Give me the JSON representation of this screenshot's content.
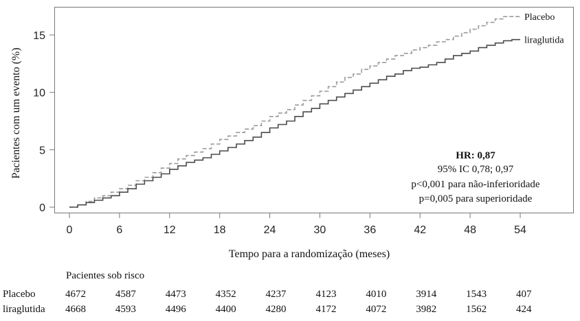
{
  "chart_data": {
    "type": "line",
    "xlabel": "Tempo para a randomização (meses)",
    "ylabel": "Pacientes com um evento (%)",
    "xticks": [
      0,
      6,
      12,
      18,
      24,
      30,
      36,
      42,
      48,
      54
    ],
    "yticks": [
      0,
      5,
      10,
      15
    ],
    "xlim": [
      0,
      54
    ],
    "ylim": [
      0,
      17
    ],
    "grid": false,
    "series": [
      {
        "name": "Placebo",
        "color": "#9a9a9a",
        "style": "dashed",
        "x": [
          0,
          1,
          2,
          3,
          4,
          5,
          6,
          7,
          8,
          9,
          10,
          11,
          12,
          13,
          14,
          15,
          16,
          17,
          18,
          19,
          20,
          21,
          22,
          23,
          24,
          25,
          26,
          27,
          28,
          29,
          30,
          31,
          32,
          33,
          34,
          35,
          36,
          37,
          38,
          39,
          40,
          41,
          42,
          43,
          44,
          45,
          46,
          47,
          48,
          49,
          50,
          51,
          52,
          53,
          54
        ],
        "values": [
          0.0,
          0.2,
          0.5,
          0.8,
          1.0,
          1.3,
          1.6,
          1.9,
          2.3,
          2.6,
          3.0,
          3.4,
          3.8,
          4.2,
          4.5,
          4.8,
          5.1,
          5.5,
          5.9,
          6.2,
          6.5,
          6.8,
          7.1,
          7.5,
          7.9,
          8.2,
          8.5,
          8.9,
          9.3,
          9.7,
          10.1,
          10.5,
          10.9,
          11.3,
          11.6,
          12.0,
          12.3,
          12.6,
          12.9,
          13.2,
          13.4,
          13.7,
          13.9,
          14.1,
          14.4,
          14.6,
          14.9,
          15.2,
          15.5,
          15.8,
          16.1,
          16.4,
          16.6,
          16.6,
          16.6
        ]
      },
      {
        "name": "liraglutida",
        "color": "#4a4a4a",
        "style": "solid",
        "x": [
          0,
          1,
          2,
          3,
          4,
          5,
          6,
          7,
          8,
          9,
          10,
          11,
          12,
          13,
          14,
          15,
          16,
          17,
          18,
          19,
          20,
          21,
          22,
          23,
          24,
          25,
          26,
          27,
          28,
          29,
          30,
          31,
          32,
          33,
          34,
          35,
          36,
          37,
          38,
          39,
          40,
          41,
          42,
          43,
          44,
          45,
          46,
          47,
          48,
          49,
          50,
          51,
          52,
          53,
          54
        ],
        "values": [
          0.0,
          0.2,
          0.4,
          0.6,
          0.8,
          1.0,
          1.3,
          1.6,
          2.0,
          2.3,
          2.6,
          2.9,
          3.3,
          3.6,
          3.9,
          4.1,
          4.3,
          4.6,
          4.9,
          5.2,
          5.5,
          5.8,
          6.1,
          6.5,
          6.9,
          7.2,
          7.5,
          7.9,
          8.3,
          8.6,
          9.0,
          9.3,
          9.6,
          9.9,
          10.2,
          10.5,
          10.8,
          11.1,
          11.4,
          11.6,
          11.9,
          12.1,
          12.2,
          12.4,
          12.6,
          12.9,
          13.2,
          13.4,
          13.6,
          13.9,
          14.1,
          14.3,
          14.5,
          14.6,
          14.6
        ]
      }
    ],
    "annotations": {
      "hr": "HR: 0,87",
      "ci": "95% IC 0,78; 0,97",
      "noninferiority": "p<0,001 para não-inferioridade",
      "superiority": "p=0,005 para superioridade"
    }
  },
  "risk_table": {
    "title": "Pacientes sob risco",
    "rows": [
      {
        "name": "Placebo",
        "values": [
          "4672",
          "4587",
          "4473",
          "4352",
          "4237",
          "4123",
          "4010",
          "3914",
          "1543",
          "407"
        ]
      },
      {
        "name": "liraglutida",
        "values": [
          "4668",
          "4593",
          "4496",
          "4400",
          "4280",
          "4172",
          "4072",
          "3982",
          "1562",
          "424"
        ]
      }
    ]
  }
}
